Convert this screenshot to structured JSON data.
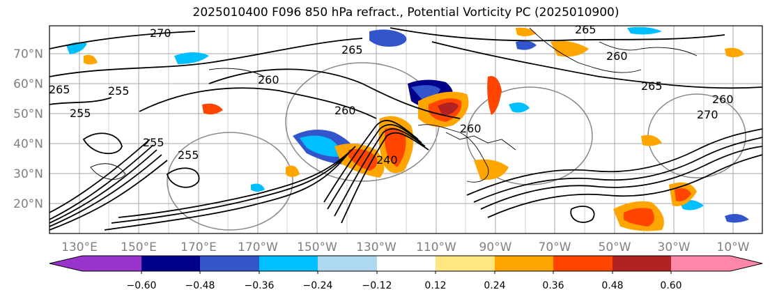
{
  "title": "2025010400 F096 850 hPa refract., Potential Vorticity PC (2025010900)",
  "map": {
    "lat_ticks": [
      "70°N",
      "60°N",
      "50°N",
      "40°N",
      "30°N",
      "20°N"
    ],
    "lon_ticks": [
      "130°E",
      "150°E",
      "170°E",
      "170°W",
      "150°W",
      "130°W",
      "110°W",
      "90°W",
      "70°W",
      "50°W",
      "30°W",
      "10°W"
    ],
    "contour_labels": [
      "270",
      "265",
      "265",
      "260",
      "255",
      "265",
      "260",
      "255",
      "255",
      "260",
      "240",
      "265",
      "260",
      "270",
      "255",
      "260"
    ]
  },
  "colorbar": {
    "labels": [
      "−0.60",
      "−0.48",
      "−0.36",
      "−0.24",
      "−0.12",
      "0.12",
      "0.24",
      "0.36",
      "0.48",
      "0.60"
    ],
    "colors": [
      "#9933cc",
      "#00008b",
      "#3355cc",
      "#00bfff",
      "#add8f0",
      "#ffffff",
      "#ffe680",
      "#ffa500",
      "#ff4500",
      "#b22222",
      "#ff88aa",
      "#ff88aa"
    ]
  }
}
